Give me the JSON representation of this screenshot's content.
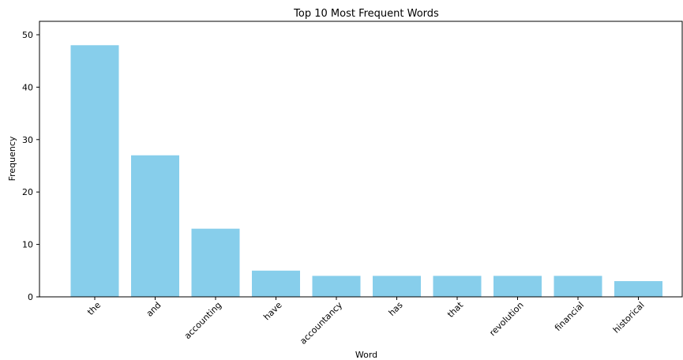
{
  "chart_data": {
    "type": "bar",
    "title": "Top 10 Most Frequent Words",
    "xlabel": "Word",
    "ylabel": "Frequency",
    "categories": [
      "the",
      "and",
      "accounting",
      "have",
      "accountancy",
      "has",
      "that",
      "revolution",
      "financial",
      "historical"
    ],
    "values": [
      48,
      27,
      13,
      5,
      4,
      4,
      4,
      4,
      4,
      3
    ],
    "ylim": [
      0,
      50
    ],
    "yticks": [
      0,
      10,
      20,
      30,
      40,
      50
    ],
    "bar_color": "#87ceeb",
    "grid": false,
    "legend": "none"
  }
}
